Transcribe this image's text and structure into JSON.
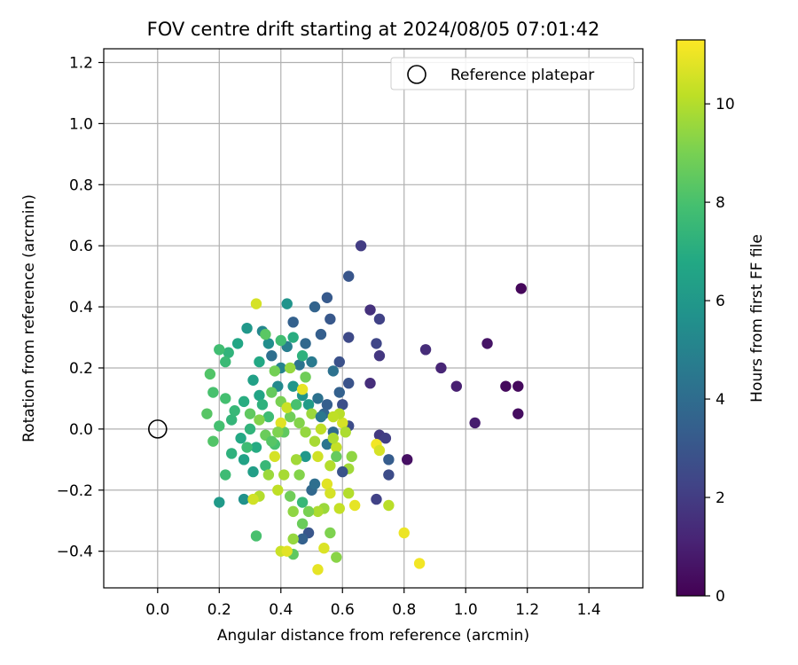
{
  "chart_data": {
    "type": "scatter",
    "title": "FOV centre drift starting at 2024/08/05 07:01:42",
    "xlabel": "Angular distance from reference (arcmin)",
    "ylabel": "Rotation from reference (arcmin)",
    "xlim": [
      -0.175,
      1.575
    ],
    "ylim": [
      -0.52,
      1.245
    ],
    "xticks": [
      0.0,
      0.2,
      0.4,
      0.6,
      0.8,
      1.0,
      1.2,
      1.4
    ],
    "xtick_labels": [
      "0.0",
      "0.2",
      "0.4",
      "0.6",
      "0.8",
      "1.0",
      "1.2",
      "1.4"
    ],
    "yticks": [
      -0.4,
      -0.2,
      0.0,
      0.2,
      0.4,
      0.6,
      0.8,
      1.0,
      1.2
    ],
    "ytick_labels": [
      "−0.4",
      "−0.2",
      "0.0",
      "0.2",
      "0.4",
      "0.6",
      "0.8",
      "1.0",
      "1.2"
    ],
    "grid": true,
    "colormap": "viridis",
    "colorbar": {
      "label": "Hours from first FF file",
      "min": 0,
      "max": 11.3,
      "ticks": [
        0,
        2,
        4,
        6,
        8,
        10
      ],
      "tick_labels": [
        "0",
        "2",
        "4",
        "6",
        "8",
        "10"
      ]
    },
    "legend": {
      "position": "top-right",
      "entries": [
        "Reference platepar"
      ]
    },
    "reference_point": {
      "x": 0.0,
      "y": 0.0,
      "label": "Reference platepar"
    },
    "series": [
      {
        "points": [
          {
            "x": 1.18,
            "y": 0.46,
            "c": 0.2
          },
          {
            "x": 1.17,
            "y": 0.14,
            "c": 0.3
          },
          {
            "x": 1.13,
            "y": 0.14,
            "c": 0.3
          },
          {
            "x": 1.17,
            "y": 0.05,
            "c": 0.4
          },
          {
            "x": 1.07,
            "y": 0.28,
            "c": 0.6
          },
          {
            "x": 1.03,
            "y": 0.02,
            "c": 0.9
          },
          {
            "x": 0.97,
            "y": 0.14,
            "c": 1.0
          },
          {
            "x": 0.92,
            "y": 0.2,
            "c": 1.2
          },
          {
            "x": 0.87,
            "y": 0.26,
            "c": 1.4
          },
          {
            "x": 0.81,
            "y": -0.1,
            "c": 0.5
          },
          {
            "x": 0.66,
            "y": 0.6,
            "c": 2.0
          },
          {
            "x": 0.69,
            "y": 0.39,
            "c": 1.6
          },
          {
            "x": 0.72,
            "y": 0.36,
            "c": 2.2
          },
          {
            "x": 0.71,
            "y": 0.28,
            "c": 2.4
          },
          {
            "x": 0.72,
            "y": 0.24,
            "c": 1.8
          },
          {
            "x": 0.69,
            "y": 0.15,
            "c": 1.5
          },
          {
            "x": 0.72,
            "y": -0.02,
            "c": 1.9
          },
          {
            "x": 0.74,
            "y": -0.03,
            "c": 2.1
          },
          {
            "x": 0.75,
            "y": -0.1,
            "c": 3.3
          },
          {
            "x": 0.75,
            "y": -0.15,
            "c": 2.6
          },
          {
            "x": 0.71,
            "y": -0.23,
            "c": 2.2
          },
          {
            "x": 0.62,
            "y": 0.5,
            "c": 3.0
          },
          {
            "x": 0.55,
            "y": 0.43,
            "c": 3.2
          },
          {
            "x": 0.56,
            "y": 0.36,
            "c": 3.1
          },
          {
            "x": 0.53,
            "y": 0.31,
            "c": 3.4
          },
          {
            "x": 0.59,
            "y": 0.22,
            "c": 2.8
          },
          {
            "x": 0.62,
            "y": 0.3,
            "c": 2.5
          },
          {
            "x": 0.62,
            "y": 0.15,
            "c": 2.9
          },
          {
            "x": 0.59,
            "y": 0.12,
            "c": 3.5
          },
          {
            "x": 0.57,
            "y": 0.19,
            "c": 4.2
          },
          {
            "x": 0.54,
            "y": 0.05,
            "c": 3.7
          },
          {
            "x": 0.6,
            "y": 0.08,
            "c": 2.7
          },
          {
            "x": 0.62,
            "y": 0.01,
            "c": 2.6
          },
          {
            "x": 0.57,
            "y": -0.01,
            "c": 3.9
          },
          {
            "x": 0.55,
            "y": -0.05,
            "c": 4.4
          },
          {
            "x": 0.51,
            "y": 0.4,
            "c": 3.6
          },
          {
            "x": 0.48,
            "y": 0.28,
            "c": 3.8
          },
          {
            "x": 0.46,
            "y": 0.21,
            "c": 4.3
          },
          {
            "x": 0.5,
            "y": 0.22,
            "c": 4.6
          },
          {
            "x": 0.44,
            "y": 0.35,
            "c": 3.5
          },
          {
            "x": 0.42,
            "y": 0.27,
            "c": 4.8
          },
          {
            "x": 0.4,
            "y": 0.2,
            "c": 5.0
          },
          {
            "x": 0.39,
            "y": 0.14,
            "c": 5.3
          },
          {
            "x": 0.37,
            "y": 0.24,
            "c": 4.1
          },
          {
            "x": 0.34,
            "y": 0.32,
            "c": 5.2
          },
          {
            "x": 0.36,
            "y": 0.28,
            "c": 5.5
          },
          {
            "x": 0.29,
            "y": 0.33,
            "c": 6.0
          },
          {
            "x": 0.26,
            "y": 0.28,
            "c": 6.7
          },
          {
            "x": 0.23,
            "y": 0.25,
            "c": 7.3
          },
          {
            "x": 0.2,
            "y": 0.26,
            "c": 7.8
          },
          {
            "x": 0.17,
            "y": 0.18,
            "c": 8.2
          },
          {
            "x": 0.22,
            "y": 0.22,
            "c": 7.6
          },
          {
            "x": 0.18,
            "y": 0.12,
            "c": 8.0
          },
          {
            "x": 0.22,
            "y": 0.1,
            "c": 7.9
          },
          {
            "x": 0.16,
            "y": 0.05,
            "c": 8.3
          },
          {
            "x": 0.2,
            "y": 0.01,
            "c": 7.9
          },
          {
            "x": 0.18,
            "y": -0.04,
            "c": 8.2
          },
          {
            "x": 0.24,
            "y": 0.03,
            "c": 7.4
          },
          {
            "x": 0.27,
            "y": -0.03,
            "c": 6.8
          },
          {
            "x": 0.28,
            "y": 0.09,
            "c": 7.0
          },
          {
            "x": 0.31,
            "y": 0.16,
            "c": 6.4
          },
          {
            "x": 0.33,
            "y": 0.11,
            "c": 6.6
          },
          {
            "x": 0.34,
            "y": 0.08,
            "c": 7.2
          },
          {
            "x": 0.36,
            "y": 0.04,
            "c": 7.7
          },
          {
            "x": 0.3,
            "y": 0.0,
            "c": 7.3
          },
          {
            "x": 0.32,
            "y": -0.06,
            "c": 6.9
          },
          {
            "x": 0.28,
            "y": -0.1,
            "c": 6.5
          },
          {
            "x": 0.24,
            "y": -0.08,
            "c": 7.2
          },
          {
            "x": 0.22,
            "y": -0.15,
            "c": 7.7
          },
          {
            "x": 0.2,
            "y": -0.24,
            "c": 6.1
          },
          {
            "x": 0.28,
            "y": -0.23,
            "c": 5.7
          },
          {
            "x": 0.31,
            "y": -0.14,
            "c": 6.3
          },
          {
            "x": 0.35,
            "y": -0.12,
            "c": 7.5
          },
          {
            "x": 0.38,
            "y": -0.05,
            "c": 8.0
          },
          {
            "x": 0.41,
            "y": -0.01,
            "c": 8.5
          },
          {
            "x": 0.43,
            "y": 0.04,
            "c": 8.8
          },
          {
            "x": 0.4,
            "y": 0.09,
            "c": 9.0
          },
          {
            "x": 0.37,
            "y": 0.12,
            "c": 8.6
          },
          {
            "x": 0.44,
            "y": 0.14,
            "c": 5.9
          },
          {
            "x": 0.47,
            "y": 0.11,
            "c": 5.8
          },
          {
            "x": 0.49,
            "y": 0.08,
            "c": 6.2
          },
          {
            "x": 0.46,
            "y": 0.02,
            "c": 9.2
          },
          {
            "x": 0.48,
            "y": -0.01,
            "c": 9.5
          },
          {
            "x": 0.51,
            "y": -0.04,
            "c": 9.8
          },
          {
            "x": 0.53,
            "y": 0.0,
            "c": 10.2
          },
          {
            "x": 0.52,
            "y": -0.09,
            "c": 10.5
          },
          {
            "x": 0.56,
            "y": -0.12,
            "c": 10.0
          },
          {
            "x": 0.58,
            "y": -0.06,
            "c": 10.3
          },
          {
            "x": 0.6,
            "y": 0.02,
            "c": 10.6
          },
          {
            "x": 0.59,
            "y": 0.05,
            "c": 10.1
          },
          {
            "x": 0.61,
            "y": -0.01,
            "c": 9.9
          },
          {
            "x": 0.55,
            "y": -0.18,
            "c": 10.8
          },
          {
            "x": 0.56,
            "y": -0.21,
            "c": 10.6
          },
          {
            "x": 0.54,
            "y": -0.26,
            "c": 9.6
          },
          {
            "x": 0.52,
            "y": -0.27,
            "c": 9.9
          },
          {
            "x": 0.49,
            "y": -0.27,
            "c": 9.0
          },
          {
            "x": 0.47,
            "y": -0.31,
            "c": 8.7
          },
          {
            "x": 0.49,
            "y": -0.34,
            "c": 3.0
          },
          {
            "x": 0.47,
            "y": -0.36,
            "c": 3.5
          },
          {
            "x": 0.44,
            "y": -0.36,
            "c": 9.5
          },
          {
            "x": 0.44,
            "y": -0.41,
            "c": 8.5
          },
          {
            "x": 0.4,
            "y": -0.4,
            "c": 10.4
          },
          {
            "x": 0.42,
            "y": -0.4,
            "c": 10.8
          },
          {
            "x": 0.52,
            "y": -0.46,
            "c": 10.9
          },
          {
            "x": 0.54,
            "y": -0.39,
            "c": 10.7
          },
          {
            "x": 0.58,
            "y": -0.42,
            "c": 9.3
          },
          {
            "x": 0.56,
            "y": -0.34,
            "c": 9.1
          },
          {
            "x": 0.59,
            "y": -0.26,
            "c": 10.3
          },
          {
            "x": 0.62,
            "y": -0.21,
            "c": 10.0
          },
          {
            "x": 0.64,
            "y": -0.25,
            "c": 10.9
          },
          {
            "x": 0.62,
            "y": -0.13,
            "c": 9.7
          },
          {
            "x": 0.63,
            "y": -0.09,
            "c": 9.4
          },
          {
            "x": 0.71,
            "y": -0.05,
            "c": 11.1
          },
          {
            "x": 0.72,
            "y": -0.07,
            "c": 10.6
          },
          {
            "x": 0.75,
            "y": -0.25,
            "c": 10.1
          },
          {
            "x": 0.8,
            "y": -0.34,
            "c": 11.0
          },
          {
            "x": 0.85,
            "y": -0.44,
            "c": 11.1
          },
          {
            "x": 0.47,
            "y": -0.24,
            "c": 7.5
          },
          {
            "x": 0.44,
            "y": -0.27,
            "c": 9.4
          },
          {
            "x": 0.43,
            "y": -0.22,
            "c": 8.8
          },
          {
            "x": 0.41,
            "y": -0.15,
            "c": 9.8
          },
          {
            "x": 0.39,
            "y": -0.2,
            "c": 10.2
          },
          {
            "x": 0.36,
            "y": -0.15,
            "c": 9.6
          },
          {
            "x": 0.33,
            "y": -0.22,
            "c": 10.0
          },
          {
            "x": 0.31,
            "y": -0.23,
            "c": 10.5
          },
          {
            "x": 0.32,
            "y": -0.35,
            "c": 8.0
          },
          {
            "x": 0.46,
            "y": -0.15,
            "c": 9.2
          },
          {
            "x": 0.5,
            "y": -0.2,
            "c": 3.8
          },
          {
            "x": 0.51,
            "y": -0.18,
            "c": 4.1
          },
          {
            "x": 0.48,
            "y": -0.09,
            "c": 6.0
          },
          {
            "x": 0.45,
            "y": -0.1,
            "c": 9.7
          },
          {
            "x": 0.38,
            "y": -0.09,
            "c": 10.6
          },
          {
            "x": 0.4,
            "y": 0.02,
            "c": 10.8
          },
          {
            "x": 0.42,
            "y": 0.07,
            "c": 10.4
          },
          {
            "x": 0.45,
            "y": 0.08,
            "c": 8.0
          },
          {
            "x": 0.47,
            "y": 0.13,
            "c": 10.9
          },
          {
            "x": 0.32,
            "y": 0.41,
            "c": 10.6
          },
          {
            "x": 0.42,
            "y": 0.41,
            "c": 5.8
          },
          {
            "x": 0.44,
            "y": 0.3,
            "c": 7.0
          },
          {
            "x": 0.4,
            "y": 0.29,
            "c": 7.8
          },
          {
            "x": 0.35,
            "y": 0.31,
            "c": 8.4
          },
          {
            "x": 0.38,
            "y": 0.19,
            "c": 8.9
          },
          {
            "x": 0.47,
            "y": 0.24,
            "c": 7.2
          },
          {
            "x": 0.43,
            "y": 0.2,
            "c": 9.5
          },
          {
            "x": 0.48,
            "y": 0.17,
            "c": 8.8
          },
          {
            "x": 0.33,
            "y": 0.22,
            "c": 6.8
          },
          {
            "x": 0.3,
            "y": 0.05,
            "c": 8.5
          },
          {
            "x": 0.33,
            "y": 0.03,
            "c": 9.2
          },
          {
            "x": 0.35,
            "y": -0.02,
            "c": 8.7
          },
          {
            "x": 0.29,
            "y": -0.06,
            "c": 7.7
          },
          {
            "x": 0.25,
            "y": 0.06,
            "c": 7.5
          },
          {
            "x": 0.39,
            "y": -0.01,
            "c": 9.1
          },
          {
            "x": 0.37,
            "y": -0.04,
            "c": 8.3
          },
          {
            "x": 0.5,
            "y": 0.05,
            "c": 9.6
          },
          {
            "x": 0.57,
            "y": 0.04,
            "c": 10.2
          },
          {
            "x": 0.53,
            "y": 0.04,
            "c": 4.5
          },
          {
            "x": 0.52,
            "y": 0.1,
            "c": 4.2
          },
          {
            "x": 0.55,
            "y": 0.08,
            "c": 3.4
          },
          {
            "x": 0.57,
            "y": -0.03,
            "c": 9.9
          },
          {
            "x": 0.58,
            "y": -0.09,
            "c": 8.6
          },
          {
            "x": 0.6,
            "y": -0.14,
            "c": 2.9
          }
        ]
      }
    ]
  }
}
